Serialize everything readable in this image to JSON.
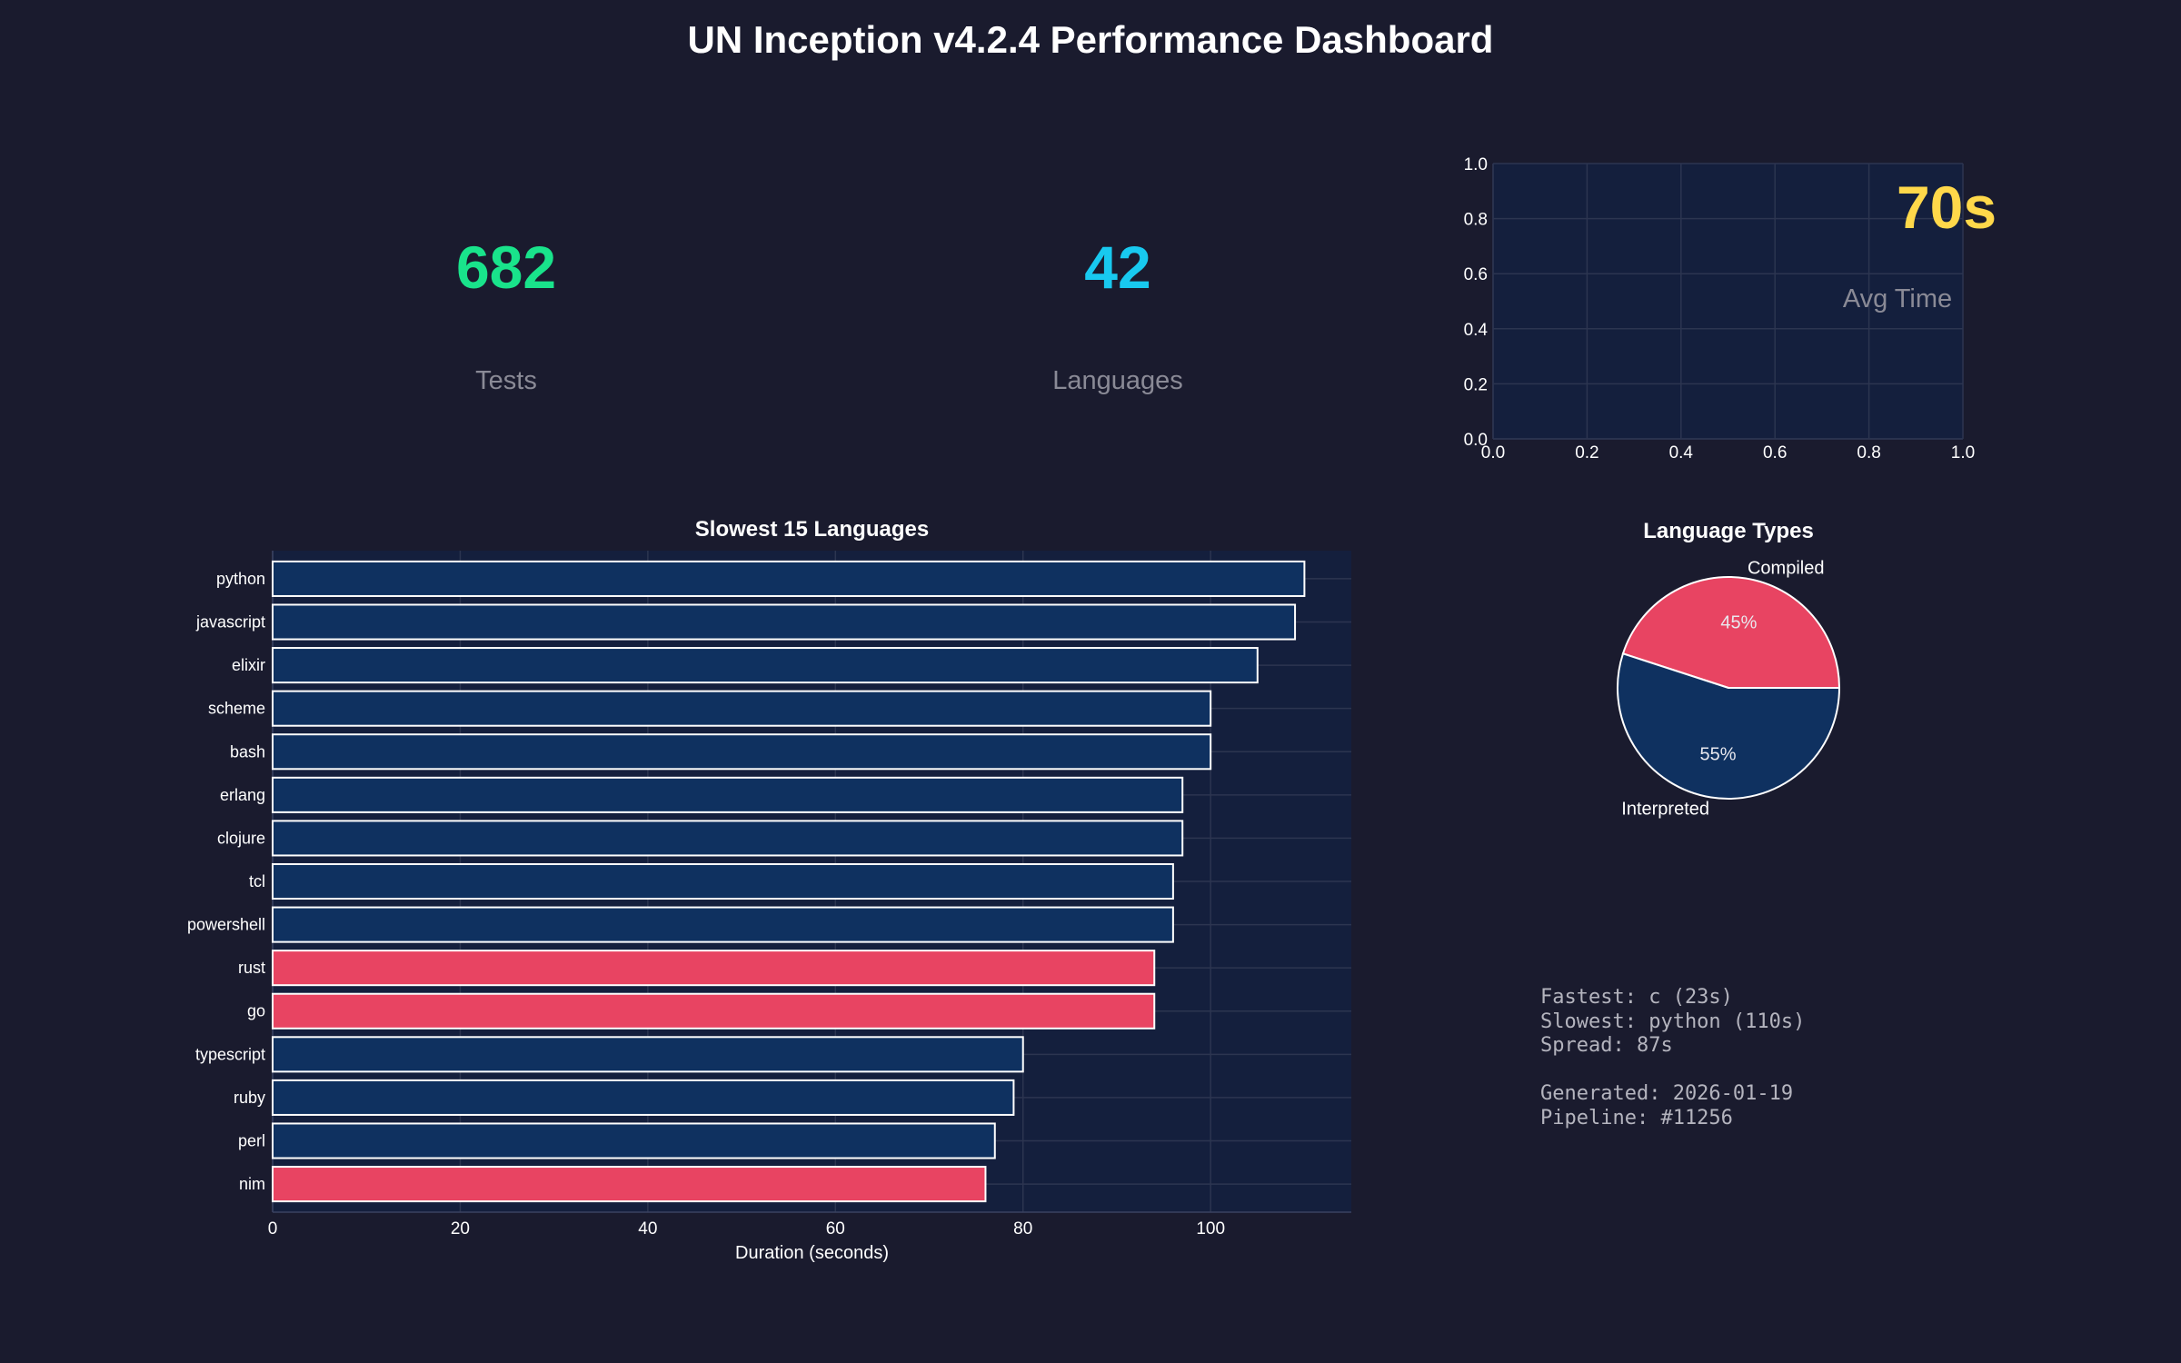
{
  "title": "UN Inception v4.2.4 Performance Dashboard",
  "kpis": {
    "tests": {
      "value": "682",
      "label": "Tests",
      "color": "#19e38b"
    },
    "languages": {
      "value": "42",
      "label": "Languages",
      "color": "#18c9ef"
    },
    "avg_time": {
      "value": "70s",
      "label": "Avg Time",
      "color": "#ffd84a"
    }
  },
  "colors": {
    "background": "#1a1b2e",
    "panel": "#141f3d",
    "interpreted": "#0f3160",
    "compiled": "#e84462",
    "grid": "#2c3550",
    "muted": "#8a8a96"
  },
  "chart_data": [
    {
      "type": "scatter",
      "title": "",
      "x": [],
      "y": [],
      "xlim": [
        0,
        1
      ],
      "ylim": [
        0,
        1
      ],
      "xticks": [
        "0.0",
        "0.2",
        "0.4",
        "0.6",
        "0.8",
        "1.0"
      ],
      "yticks": [
        "0.0",
        "0.2",
        "0.4",
        "0.6",
        "0.8",
        "1.0"
      ],
      "grid": true
    },
    {
      "type": "bar",
      "orientation": "horizontal",
      "title": "Slowest 15 Languages",
      "xlabel": "Duration (seconds)",
      "ylabel": "",
      "categories": [
        "python",
        "javascript",
        "elixir",
        "scheme",
        "bash",
        "erlang",
        "clojure",
        "tcl",
        "powershell",
        "rust",
        "go",
        "typescript",
        "ruby",
        "perl",
        "nim"
      ],
      "values": [
        110,
        109,
        105,
        100,
        100,
        97,
        97,
        96,
        96,
        94,
        94,
        80,
        79,
        77,
        76
      ],
      "kinds": [
        "interpreted",
        "interpreted",
        "interpreted",
        "interpreted",
        "interpreted",
        "interpreted",
        "interpreted",
        "interpreted",
        "interpreted",
        "compiled",
        "compiled",
        "interpreted",
        "interpreted",
        "interpreted",
        "compiled"
      ],
      "xlim": [
        0,
        115
      ],
      "xticks": [
        0,
        20,
        40,
        60,
        80,
        100
      ],
      "grid": true
    },
    {
      "type": "pie",
      "title": "Language Types",
      "labels": [
        "Compiled",
        "Interpreted"
      ],
      "values": [
        45,
        55
      ],
      "value_labels": [
        "45%",
        "55%"
      ],
      "colors": [
        "#e84462",
        "#0f3160"
      ]
    }
  ],
  "stats": {
    "fastest": "Fastest: c (23s)",
    "slowest": "Slowest: python (110s)",
    "spread": "Spread: 87s",
    "generated": "Generated: 2026-01-19",
    "pipeline": "Pipeline: #11256"
  }
}
